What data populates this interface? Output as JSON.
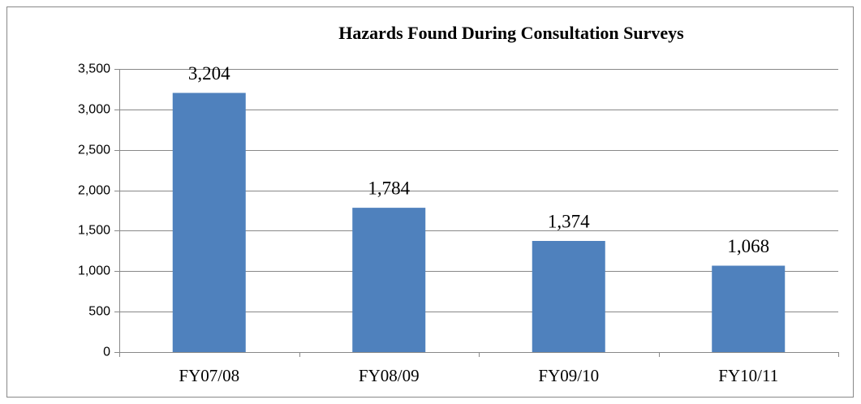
{
  "chart_data": {
    "type": "bar",
    "title": "Hazards Found During Consultation Surveys",
    "categories": [
      "FY07/08",
      "FY08/09",
      "FY09/10",
      "FY10/11"
    ],
    "values": [
      3204,
      1784,
      1374,
      1068
    ],
    "value_labels": [
      "3,204",
      "1,784",
      "1,374",
      "1,068"
    ],
    "color": "#4f81bd",
    "ylim": [
      0,
      3500
    ],
    "yticks": [
      0,
      500,
      {
        "value": 1000,
        "label": "1,000"
      },
      {
        "value": 1500,
        "label": "1,500"
      },
      {
        "value": 2000,
        "label": "2,000"
      },
      {
        "value": 2500,
        "label": "2,500"
      },
      {
        "value": 3000,
        "label": "3,000"
      },
      {
        "value": 3500,
        "label": "3,500"
      }
    ],
    "grid": true
  }
}
